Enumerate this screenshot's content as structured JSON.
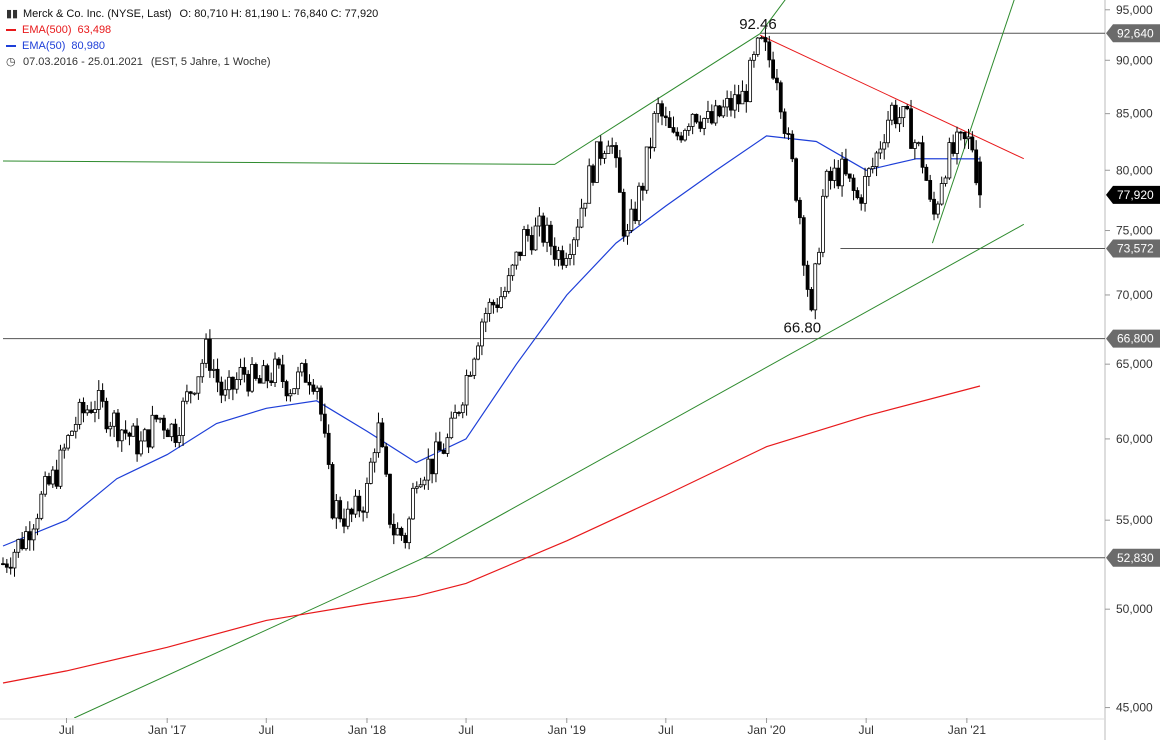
{
  "legend": {
    "title": "Merck & Co. Inc. (NYSE, Last)",
    "ohlc": "O: 80,710  H: 81,190  L: 76,840  C: 77,920",
    "ema500_label": "EMA(500)",
    "ema500_value": "63,498",
    "ema50_label": "EMA(50)",
    "ema50_value": "80,980",
    "range": "07.03.2016 - 25.01.2021",
    "range_note": "(EST, 5 Jahre, 1 Woche)"
  },
  "colors": {
    "bull": "#ffffff",
    "bear": "#000000",
    "ema500": "#e8191b",
    "ema50": "#1e3fd8",
    "trend_green": "#2e8b2e",
    "resistance_red": "#e8191b",
    "hline": "#555555",
    "axis_text": "#333333"
  },
  "chart_data": {
    "type": "candlestick",
    "title": "Merck & Co. Inc. (NYSE, Last)",
    "yscale": "log",
    "ylim": [
      44.5,
      96
    ],
    "y_ticks": [
      "45,000",
      "50,000",
      "55,000",
      "60,000",
      "65,000",
      "70,000",
      "75,000",
      "80,000",
      "85,000",
      "90,000",
      "95,000"
    ],
    "x_range": [
      "2016-03-07",
      "2021-01-25"
    ],
    "x_ticks": [
      {
        "label": "Jul",
        "date": "2016-07-01"
      },
      {
        "label": "Jan '17",
        "date": "2017-01-01"
      },
      {
        "label": "Jul",
        "date": "2017-07-01"
      },
      {
        "label": "Jan '18",
        "date": "2018-01-01"
      },
      {
        "label": "Jul",
        "date": "2018-07-01"
      },
      {
        "label": "Jan '19",
        "date": "2019-01-01"
      },
      {
        "label": "Jul",
        "date": "2019-07-01"
      },
      {
        "label": "Jan '20",
        "date": "2020-01-01"
      },
      {
        "label": "Jul",
        "date": "2020-07-01"
      },
      {
        "label": "Jan '21",
        "date": "2021-01-01"
      }
    ],
    "price_path": [
      [
        "2016-03-07",
        52.5
      ],
      [
        "2016-04-15",
        54.0
      ],
      [
        "2016-05-20",
        56.5
      ],
      [
        "2016-06-15",
        58.0
      ],
      [
        "2016-07-15",
        61.0
      ],
      [
        "2016-08-20",
        62.5
      ],
      [
        "2016-10-01",
        61.0
      ],
      [
        "2016-11-15",
        59.5
      ],
      [
        "2016-12-15",
        61.5
      ],
      [
        "2017-01-15",
        60.5
      ],
      [
        "2017-02-15",
        63.5
      ],
      [
        "2017-03-15",
        66.0
      ],
      [
        "2017-04-15",
        62.5
      ],
      [
        "2017-05-20",
        64.5
      ],
      [
        "2017-06-15",
        63.5
      ],
      [
        "2017-07-15",
        64.5
      ],
      [
        "2017-08-15",
        63.5
      ],
      [
        "2017-09-15",
        64.5
      ],
      [
        "2017-10-01",
        64.0
      ],
      [
        "2017-10-28",
        56.0
      ],
      [
        "2017-11-30",
        55.0
      ],
      [
        "2017-12-31",
        56.5
      ],
      [
        "2018-01-20",
        61.0
      ],
      [
        "2018-02-15",
        54.5
      ],
      [
        "2018-03-15",
        54.0
      ],
      [
        "2018-04-01",
        58.0
      ],
      [
        "2018-05-01",
        58.5
      ],
      [
        "2018-06-01",
        60.0
      ],
      [
        "2018-07-01",
        64.0
      ],
      [
        "2018-08-01",
        68.5
      ],
      [
        "2018-09-15",
        70.5
      ],
      [
        "2018-10-15",
        74.5
      ],
      [
        "2018-11-15",
        75.0
      ],
      [
        "2018-12-20",
        73.0
      ],
      [
        "2019-01-15",
        75.0
      ],
      [
        "2019-02-15",
        80.0
      ],
      [
        "2019-03-20",
        83.5
      ],
      [
        "2019-04-20",
        74.0
      ],
      [
        "2019-05-20",
        79.0
      ],
      [
        "2019-06-15",
        85.5
      ],
      [
        "2019-07-15",
        82.5
      ],
      [
        "2019-08-20",
        85.5
      ],
      [
        "2019-09-20",
        84.0
      ],
      [
        "2019-10-20",
        85.5
      ],
      [
        "2019-11-20",
        86.5
      ],
      [
        "2019-12-20",
        91.5
      ],
      [
        "2020-01-20",
        89.0
      ],
      [
        "2020-02-10",
        82.0
      ],
      [
        "2020-02-28",
        77.5
      ],
      [
        "2020-03-23",
        68.0
      ],
      [
        "2020-04-15",
        78.5
      ],
      [
        "2020-05-15",
        80.0
      ],
      [
        "2020-06-15",
        77.5
      ],
      [
        "2020-07-15",
        80.5
      ],
      [
        "2020-08-15",
        85.5
      ],
      [
        "2020-09-15",
        84.0
      ],
      [
        "2020-10-15",
        80.5
      ],
      [
        "2020-10-30",
        75.5
      ],
      [
        "2020-11-20",
        80.5
      ],
      [
        "2020-12-15",
        82.0
      ],
      [
        "2021-01-10",
        82.5
      ],
      [
        "2021-01-25",
        77.92
      ]
    ],
    "last_candle": {
      "date": "2021-01-25",
      "open": 80.71,
      "high": 81.19,
      "low": 76.84,
      "close": 77.92
    },
    "series": [
      {
        "name": "EMA(500)",
        "last": 63.498,
        "points": [
          [
            "2016-03-07",
            46.2
          ],
          [
            "2016-07-01",
            46.8
          ],
          [
            "2017-01-01",
            48.0
          ],
          [
            "2017-07-01",
            49.4
          ],
          [
            "2018-01-01",
            50.3
          ],
          [
            "2018-04-01",
            50.7
          ],
          [
            "2018-07-01",
            51.4
          ],
          [
            "2019-01-01",
            53.8
          ],
          [
            "2019-07-01",
            56.5
          ],
          [
            "2020-01-01",
            59.5
          ],
          [
            "2020-07-01",
            61.5
          ],
          [
            "2021-01-25",
            63.5
          ]
        ]
      },
      {
        "name": "EMA(50)",
        "last": 80.98,
        "points": [
          [
            "2016-03-07",
            53.5
          ],
          [
            "2016-07-01",
            55.0
          ],
          [
            "2016-10-01",
            57.5
          ],
          [
            "2017-01-01",
            59.0
          ],
          [
            "2017-04-01",
            61.0
          ],
          [
            "2017-07-01",
            62.0
          ],
          [
            "2017-10-01",
            62.5
          ],
          [
            "2018-01-01",
            60.5
          ],
          [
            "2018-04-01",
            58.5
          ],
          [
            "2018-07-01",
            60.0
          ],
          [
            "2018-10-01",
            65.0
          ],
          [
            "2019-01-01",
            70.0
          ],
          [
            "2019-04-01",
            74.0
          ],
          [
            "2019-07-01",
            77.0
          ],
          [
            "2019-10-01",
            80.0
          ],
          [
            "2020-01-01",
            83.0
          ],
          [
            "2020-04-01",
            82.5
          ],
          [
            "2020-07-01",
            80.0
          ],
          [
            "2020-10-01",
            81.0
          ],
          [
            "2021-01-25",
            80.98
          ]
        ]
      }
    ],
    "horizontal_levels": [
      {
        "label": "92,640",
        "value": 92.64,
        "from": "2019-12-20"
      },
      {
        "label": "73,572",
        "value": 73.572,
        "from": "2020-05-15"
      },
      {
        "label": "66,800",
        "value": 66.8,
        "from": "2016-03-07"
      },
      {
        "label": "52,830",
        "value": 52.83,
        "from": "2018-04-15"
      }
    ],
    "current_price": {
      "label": "77,920",
      "value": 77.92
    },
    "annotations": [
      {
        "text": "92.46",
        "date": "2019-12-20",
        "value": 92.46
      },
      {
        "text": "66.80",
        "date": "2020-03-10",
        "value": 66.8
      }
    ],
    "trendlines": [
      {
        "color": "green",
        "points": [
          [
            "2016-03-07",
            80.8
          ],
          [
            "2018-12-10",
            80.5
          ],
          [
            "2019-12-20",
            92.6
          ],
          [
            "2020-03-01",
            98.0
          ]
        ]
      },
      {
        "color": "green",
        "points": [
          [
            "2016-07-15",
            44.5
          ],
          [
            "2018-04-15",
            52.83
          ],
          [
            "2021-04-15",
            75.5
          ]
        ]
      },
      {
        "color": "green",
        "points": [
          [
            "2020-10-30",
            74.0
          ],
          [
            "2021-04-15",
            99.0
          ]
        ]
      },
      {
        "color": "red",
        "points": [
          [
            "2019-12-20",
            92.46
          ],
          [
            "2021-04-15",
            81.0
          ]
        ]
      }
    ]
  }
}
